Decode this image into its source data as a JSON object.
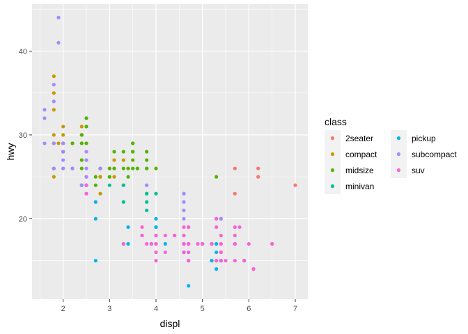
{
  "chart_data": {
    "type": "scatter",
    "title": "",
    "xlabel": "displ",
    "ylabel": "hwy",
    "xlim": [
      1.33,
      7.27
    ],
    "ylim": [
      10.4,
      45.6
    ],
    "x_ticks": [
      2,
      3,
      4,
      5,
      6,
      7
    ],
    "y_ticks": [
      20,
      30,
      40
    ],
    "grid": true,
    "legend": {
      "title": "class",
      "placement": "right",
      "columns": 2
    },
    "series": [
      {
        "name": "2seater",
        "color": "#F8766D",
        "points": [
          [
            5.7,
            26
          ],
          [
            5.7,
            23
          ],
          [
            6.2,
            26
          ],
          [
            6.2,
            25
          ],
          [
            7.0,
            24
          ]
        ]
      },
      {
        "name": "compact",
        "color": "#C49A00",
        "points": [
          [
            1.8,
            29
          ],
          [
            1.8,
            29
          ],
          [
            2.0,
            31
          ],
          [
            2.0,
            30
          ],
          [
            2.8,
            26
          ],
          [
            2.8,
            26
          ],
          [
            3.1,
            27
          ],
          [
            1.8,
            26
          ],
          [
            1.8,
            25
          ],
          [
            2.0,
            28
          ],
          [
            2.0,
            28
          ],
          [
            2.8,
            25
          ],
          [
            2.8,
            25
          ],
          [
            3.1,
            25
          ],
          [
            2.4,
            31
          ],
          [
            2.4,
            27
          ],
          [
            2.5,
            25
          ],
          [
            2.5,
            27
          ],
          [
            2.2,
            26
          ],
          [
            2.2,
            29
          ],
          [
            1.8,
            37
          ],
          [
            1.8,
            35
          ],
          [
            1.8,
            33
          ],
          [
            1.8,
            30
          ],
          [
            1.9,
            29
          ],
          [
            2.0,
            26
          ],
          [
            2.0,
            29
          ],
          [
            2.0,
            29
          ],
          [
            2.4,
            29
          ],
          [
            2.8,
            23
          ],
          [
            2.4,
            30
          ],
          [
            3.1,
            26
          ],
          [
            3.0,
            26
          ],
          [
            3.3,
            27
          ],
          [
            1.8,
            26
          ]
        ]
      },
      {
        "name": "midsize",
        "color": "#53B400",
        "points": [
          [
            2.4,
            27
          ],
          [
            2.4,
            30
          ],
          [
            3.1,
            26
          ],
          [
            3.5,
            29
          ],
          [
            3.6,
            26
          ],
          [
            2.4,
            26
          ],
          [
            3.0,
            25
          ],
          [
            3.3,
            28
          ],
          [
            3.3,
            26
          ],
          [
            3.8,
            26
          ],
          [
            3.8,
            28
          ],
          [
            3.8,
            26
          ],
          [
            5.3,
            25
          ],
          [
            2.2,
            29
          ],
          [
            2.4,
            30
          ],
          [
            2.5,
            29
          ],
          [
            2.5,
            32
          ],
          [
            2.5,
            31
          ],
          [
            3.0,
            25
          ],
          [
            3.0,
            26
          ],
          [
            3.5,
            28
          ],
          [
            3.5,
            27
          ],
          [
            2.7,
            25
          ],
          [
            2.7,
            24
          ],
          [
            3.5,
            26
          ],
          [
            3.1,
            28
          ],
          [
            3.4,
            26
          ],
          [
            3.4,
            25
          ],
          [
            3.6,
            26
          ],
          [
            3.8,
            27
          ],
          [
            4.0,
            26
          ],
          [
            2.0,
            29
          ],
          [
            2.0,
            28
          ],
          [
            2.8,
            26
          ],
          [
            2.8,
            26
          ],
          [
            3.5,
            28
          ],
          [
            3.5,
            29
          ],
          [
            2.4,
            24
          ],
          [
            2.4,
            29
          ]
        ]
      },
      {
        "name": "minivan",
        "color": "#00C094",
        "points": [
          [
            2.4,
            24
          ],
          [
            3.0,
            24
          ],
          [
            3.3,
            22
          ],
          [
            3.3,
            24
          ],
          [
            3.3,
            24
          ],
          [
            3.3,
            17
          ],
          [
            3.8,
            22
          ],
          [
            3.8,
            21
          ],
          [
            3.8,
            23
          ],
          [
            3.8,
            23
          ],
          [
            4.0,
            23
          ]
        ]
      },
      {
        "name": "pickup",
        "color": "#00B6EB",
        "points": [
          [
            2.7,
            20
          ],
          [
            2.7,
            15
          ],
          [
            2.7,
            22
          ],
          [
            3.4,
            17
          ],
          [
            3.4,
            19
          ],
          [
            3.7,
            18
          ],
          [
            3.9,
            17
          ],
          [
            3.9,
            17
          ],
          [
            4.0,
            19
          ],
          [
            4.2,
            17
          ],
          [
            4.7,
            17
          ],
          [
            4.7,
            16
          ],
          [
            4.7,
            17
          ],
          [
            4.7,
            12
          ],
          [
            5.2,
            17
          ],
          [
            5.2,
            15
          ],
          [
            5.7,
            17
          ],
          [
            5.9,
            15
          ],
          [
            5.4,
            15
          ],
          [
            4.6,
            17
          ],
          [
            4.6,
            16
          ],
          [
            5.3,
            14
          ],
          [
            5.4,
            15
          ],
          [
            4.0,
            20
          ],
          [
            4.0,
            19
          ],
          [
            4.6,
            17
          ],
          [
            5.0,
            17
          ],
          [
            5.3,
            17
          ],
          [
            5.3,
            16
          ],
          [
            5.4,
            15
          ],
          [
            4.6,
            16
          ],
          [
            5.2,
            15
          ],
          [
            5.3,
            17
          ]
        ]
      },
      {
        "name": "subcompact",
        "color": "#A58AFF",
        "points": [
          [
            1.6,
            33
          ],
          [
            1.6,
            32
          ],
          [
            1.6,
            29
          ],
          [
            1.8,
            36
          ],
          [
            1.8,
            34
          ],
          [
            1.9,
            44
          ],
          [
            1.9,
            41
          ],
          [
            2.0,
            29
          ],
          [
            2.0,
            26
          ],
          [
            2.2,
            26
          ],
          [
            2.4,
            24
          ],
          [
            2.5,
            28
          ],
          [
            2.5,
            27
          ],
          [
            2.5,
            26
          ],
          [
            2.5,
            24
          ],
          [
            2.5,
            25
          ],
          [
            3.8,
            24
          ],
          [
            4.6,
            23
          ],
          [
            4.6,
            22
          ],
          [
            4.6,
            21
          ],
          [
            4.6,
            20
          ],
          [
            5.4,
            20
          ],
          [
            2.0,
            28
          ],
          [
            2.0,
            27
          ],
          [
            2.5,
            24
          ],
          [
            2.5,
            23
          ],
          [
            2.2,
            26
          ],
          [
            2.8,
            26
          ],
          [
            2.0,
            29
          ],
          [
            2.5,
            25
          ],
          [
            3.8,
            24
          ],
          [
            4.6,
            23
          ],
          [
            5.4,
            20
          ],
          [
            1.8,
            26
          ],
          [
            1.8,
            29
          ]
        ]
      },
      {
        "name": "suv",
        "color": "#FB61D7",
        "points": [
          [
            5.3,
            20
          ],
          [
            5.3,
            15
          ],
          [
            5.3,
            20
          ],
          [
            5.7,
            17
          ],
          [
            6.0,
            17
          ],
          [
            5.7,
            17
          ],
          [
            5.7,
            15
          ],
          [
            6.1,
            14
          ],
          [
            6.5,
            17
          ],
          [
            6.5,
            17
          ],
          [
            5.3,
            19
          ],
          [
            5.3,
            15
          ],
          [
            5.7,
            17
          ],
          [
            4.7,
            17
          ],
          [
            4.7,
            15
          ],
          [
            4.7,
            19
          ],
          [
            4.7,
            16
          ],
          [
            5.7,
            18
          ],
          [
            5.7,
            19
          ],
          [
            3.7,
            19
          ],
          [
            3.7,
            18
          ],
          [
            4.7,
            17
          ],
          [
            4.7,
            17
          ],
          [
            4.7,
            19
          ],
          [
            5.2,
            17
          ],
          [
            4.6,
            19
          ],
          [
            5.4,
            17
          ],
          [
            5.4,
            15
          ],
          [
            4.0,
            15
          ],
          [
            4.0,
            17
          ],
          [
            4.0,
            16
          ],
          [
            4.6,
            17
          ],
          [
            5.0,
            17
          ],
          [
            4.2,
            18
          ],
          [
            4.4,
            18
          ],
          [
            4.6,
            17
          ],
          [
            5.4,
            16
          ],
          [
            5.4,
            18
          ],
          [
            4.0,
            17
          ],
          [
            2.5,
            23
          ],
          [
            2.5,
            24
          ],
          [
            4.0,
            18
          ],
          [
            3.3,
            17
          ],
          [
            4.7,
            15
          ],
          [
            5.9,
            15
          ],
          [
            5.5,
            15
          ],
          [
            4.4,
            18
          ],
          [
            4.7,
            17
          ],
          [
            5.4,
            16
          ],
          [
            6.1,
            14
          ],
          [
            2.5,
            24
          ],
          [
            3.9,
            17
          ],
          [
            5.8,
            19
          ],
          [
            4.0,
            18
          ],
          [
            4.2,
            16
          ],
          [
            3.8,
            17
          ],
          [
            4.6,
            16
          ],
          [
            4.6,
            18
          ],
          [
            4.9,
            17
          ],
          [
            5.0,
            17
          ],
          [
            5.4,
            17
          ],
          [
            6.1,
            14
          ]
        ]
      }
    ]
  }
}
